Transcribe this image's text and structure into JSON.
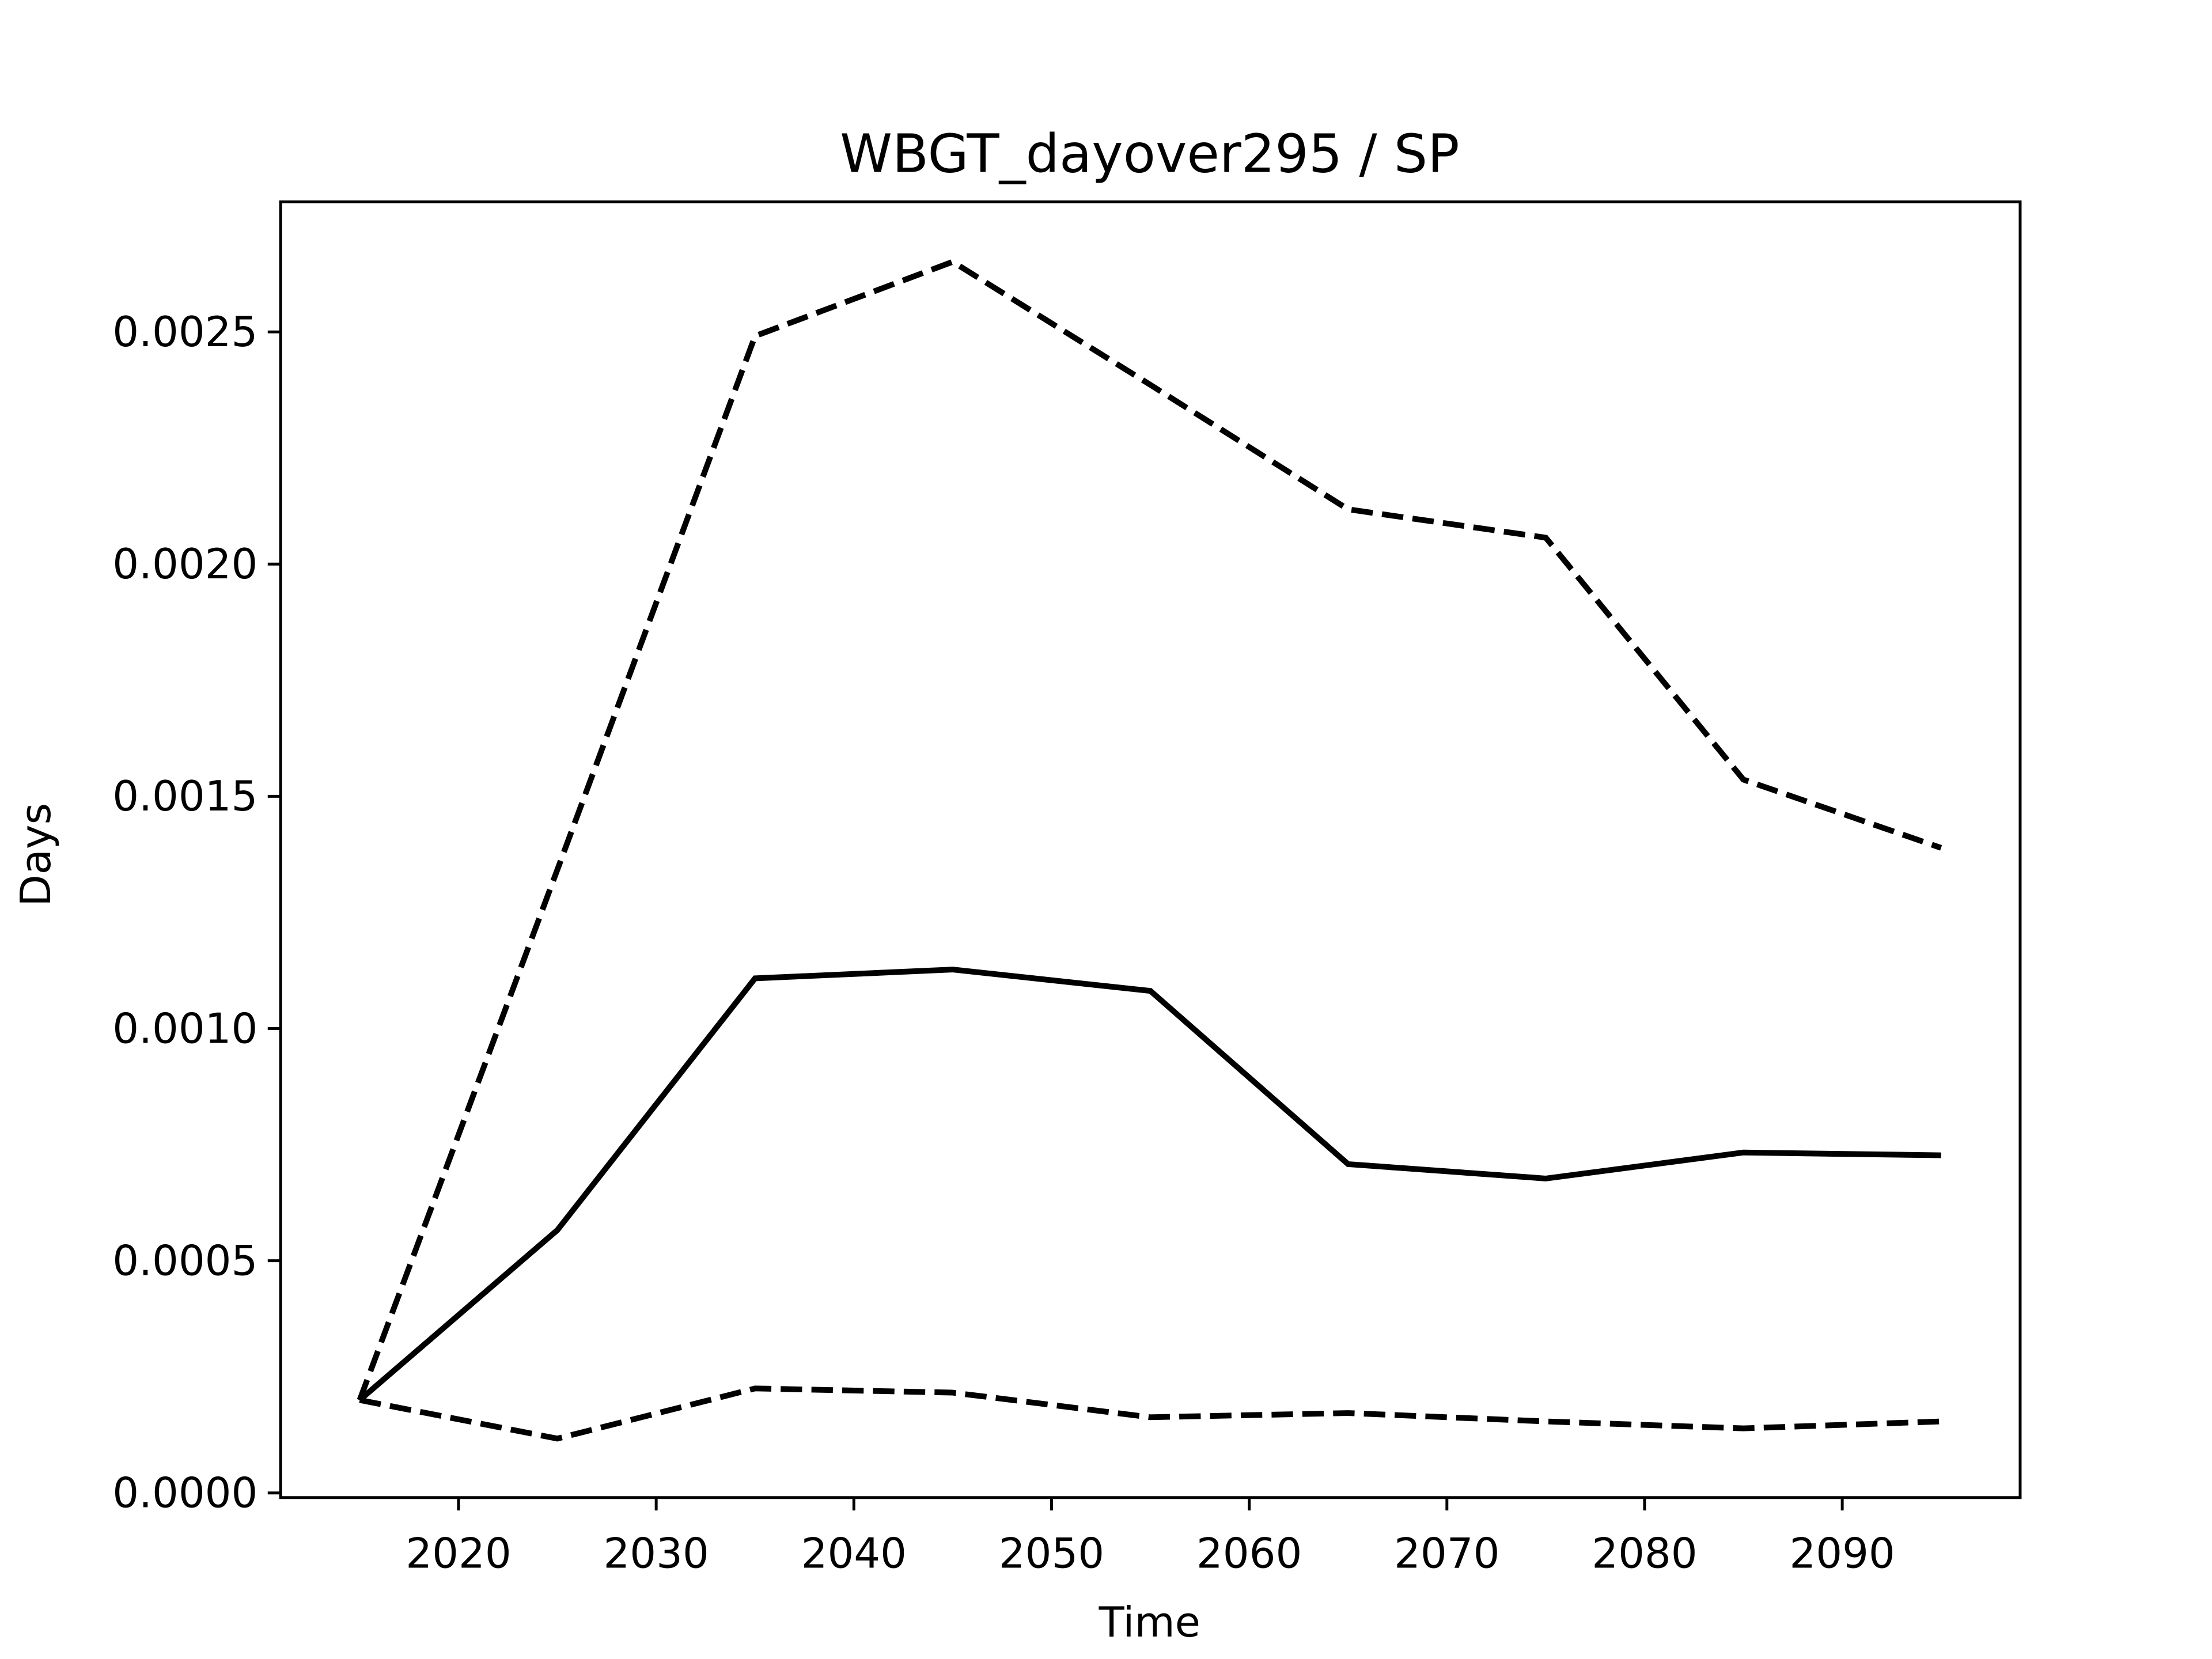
{
  "chart_data": {
    "type": "line",
    "title": "WBGT_dayover295 / SP",
    "xlabel": "Time",
    "ylabel": "Days",
    "x": [
      2015,
      2025,
      2035,
      2045,
      2055,
      2065,
      2075,
      2085,
      2095
    ],
    "series": [
      {
        "color": "#000000",
        "linestyle": "solid",
        "values": [
          0.0002,
          0.000566,
          0.001108,
          0.001127,
          0.001081,
          0.000708,
          0.000677,
          0.000733,
          0.000727
        ]
      },
      {
        "color": "#000000",
        "linestyle": "dashed",
        "values": [
          0.0002,
          0.001342,
          0.002491,
          0.002651,
          0.002386,
          0.002118,
          0.002057,
          0.001536,
          0.001389
        ]
      },
      {
        "color": "#000000",
        "linestyle": "dashed",
        "values": [
          0.0002,
          0.000117,
          0.000225,
          0.000216,
          0.000163,
          0.000172,
          0.000154,
          0.000139,
          0.000154
        ]
      }
    ],
    "xlim": [
      2011,
      2099
    ],
    "xticks": [
      2020,
      2030,
      2040,
      2050,
      2060,
      2070,
      2080,
      2090
    ],
    "ylim": [
      -1e-05,
      0.00278
    ],
    "yticks": [
      {
        "value": 0,
        "label": "0.0000"
      },
      {
        "value": 0.0005,
        "label": "0.0005"
      },
      {
        "value": 0.001,
        "label": "0.0010"
      },
      {
        "value": 0.0015,
        "label": "0.0015"
      },
      {
        "value": 0.002,
        "label": "0.0020"
      },
      {
        "value": 0.0025,
        "label": "0.0025"
      }
    ],
    "grid": false
  }
}
